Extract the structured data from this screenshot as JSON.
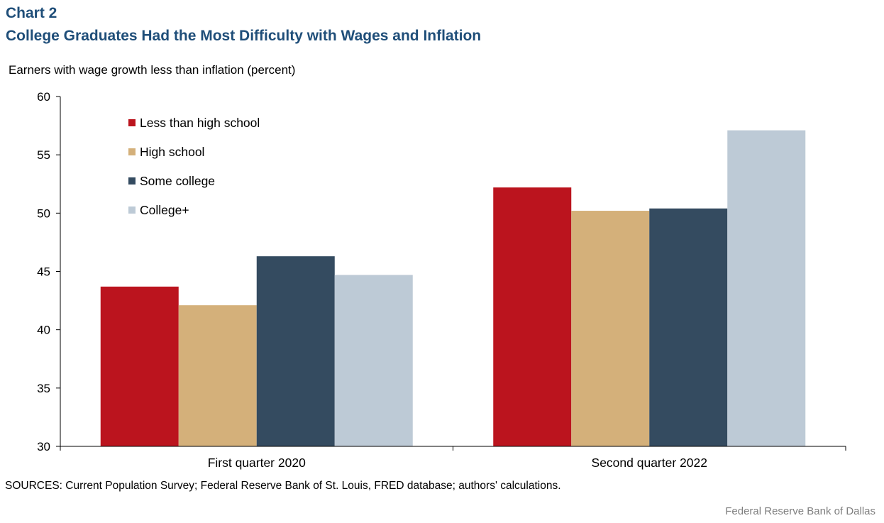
{
  "header": {
    "chart_label": "Chart 2",
    "title": "College Graduates Had the Most Difficulty with Wages and Inflation"
  },
  "footer": {
    "source": "SOURCES: Current Population Survey; Federal Reserve Bank of St. Louis, FRED database; authors' calculations.",
    "credit": "Federal Reserve Bank of Dallas"
  },
  "colors": {
    "title": "#1f4e79",
    "series": [
      "#bb141e",
      "#d4b07a",
      "#344b60",
      "#bdcad6"
    ]
  },
  "chart_data": {
    "type": "bar",
    "title": "College Graduates Had the Most Difficulty with Wages and Inflation",
    "ylabel": "Earners with wage growth less than inflation (percent)",
    "xlabel": "",
    "categories": [
      "First quarter 2020",
      "Second quarter 2022"
    ],
    "series": [
      {
        "name": "Less than high school",
        "values": [
          43.7,
          52.2
        ]
      },
      {
        "name": "High school",
        "values": [
          42.1,
          50.2
        ]
      },
      {
        "name": "Some college",
        "values": [
          46.3,
          50.4
        ]
      },
      {
        "name": "College+",
        "values": [
          44.7,
          57.1
        ]
      }
    ],
    "ylim": [
      30,
      60
    ],
    "yticks": [
      30,
      35,
      40,
      45,
      50,
      55,
      60
    ],
    "grid": false,
    "legend_position": "top-left"
  }
}
